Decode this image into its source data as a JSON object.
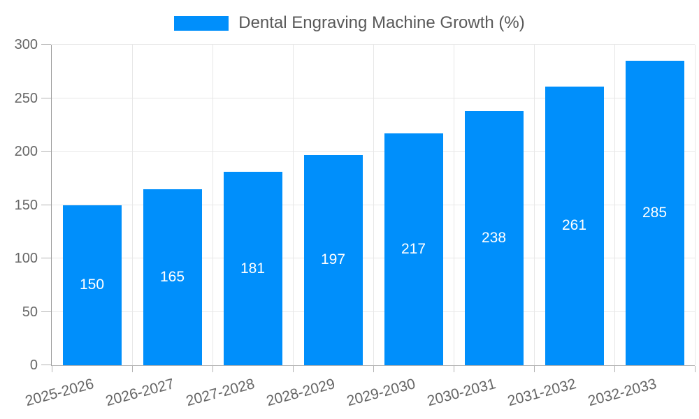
{
  "legend": {
    "label": "Dental Engraving Machine Growth (%)"
  },
  "chart_data": {
    "type": "bar",
    "title": "Dental Engraving Machine Growth (%)",
    "series_name": "Dental Engraving Machine Growth (%)",
    "categories": [
      "2025-2026",
      "2026-2027",
      "2027-2028",
      "2028-2029",
      "2029-2030",
      "2030-2031",
      "2031-2032",
      "2032-2033"
    ],
    "values": [
      150,
      165,
      181,
      197,
      217,
      238,
      261,
      285
    ],
    "xlabel": "",
    "ylabel": "",
    "ylim": [
      0,
      300
    ],
    "yticks": [
      0,
      50,
      100,
      150,
      200,
      250,
      300
    ],
    "grid": true,
    "legend_position": "top-center",
    "value_labels": "inside-center",
    "colors": {
      "bar": "#008FFB",
      "value_label_text": "#ffffff",
      "axis_tick_text": "#666666",
      "legend_text": "#595959",
      "gridline": "#e7e7e7",
      "axis_line": "#b3b3b3",
      "y_axis_line": "#9a9a9a"
    }
  }
}
